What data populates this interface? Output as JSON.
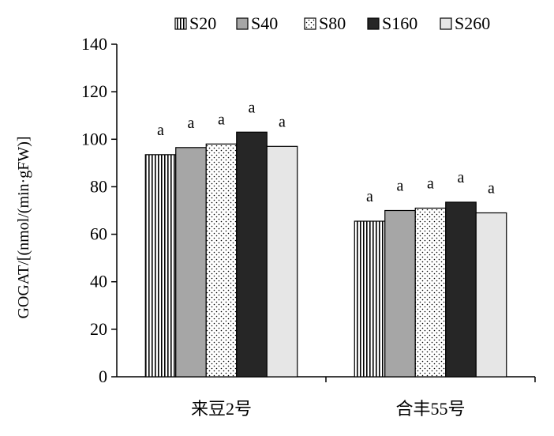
{
  "chart_data": {
    "type": "bar",
    "ylabel": "GOGAT/[(nmol/(min·gFW)]",
    "xlabel": "",
    "ylim": [
      0,
      140
    ],
    "yticks": [
      0,
      20,
      40,
      60,
      80,
      100,
      120,
      140
    ],
    "categories": [
      "来豆2号",
      "合丰55号"
    ],
    "legend_position": "top",
    "series": [
      {
        "name": "S20",
        "values": [
          93.5,
          65.5
        ],
        "significance": [
          "a",
          "a"
        ],
        "pattern": "vertical-stripes",
        "color": "#ffffff"
      },
      {
        "name": "S40",
        "values": [
          96.5,
          70
        ],
        "significance": [
          "a",
          "a"
        ],
        "pattern": "solid",
        "color": "#a6a6a6"
      },
      {
        "name": "S80",
        "values": [
          98,
          71
        ],
        "significance": [
          "a",
          "a"
        ],
        "pattern": "dots",
        "color": "#ffffff"
      },
      {
        "name": "S160",
        "values": [
          103,
          73.5
        ],
        "significance": [
          "a",
          "a"
        ],
        "pattern": "solid",
        "color": "#262626"
      },
      {
        "name": "S260",
        "values": [
          97,
          69
        ],
        "significance": [
          "a",
          "a"
        ],
        "pattern": "solid",
        "color": "#e6e6e6"
      }
    ],
    "grid": false
  }
}
